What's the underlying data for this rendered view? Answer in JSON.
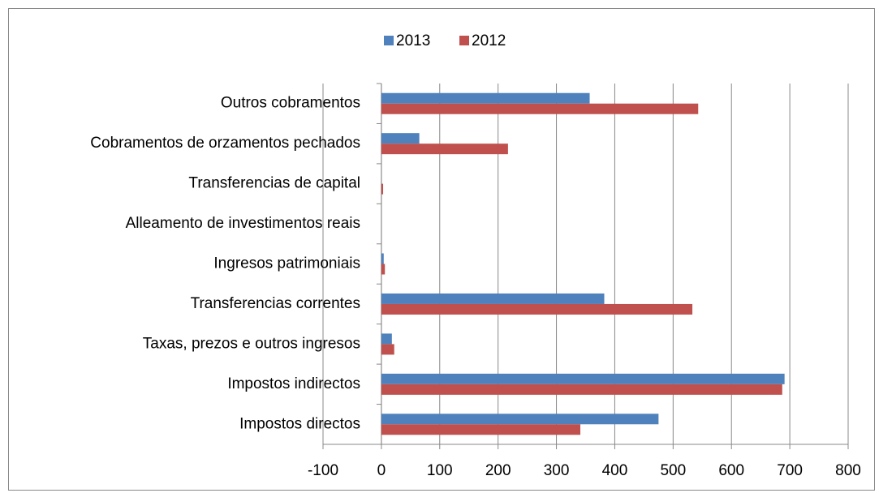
{
  "chart_data": {
    "type": "bar",
    "orientation": "horizontal",
    "categories": [
      "Impostos directos",
      "Impostos indirectos",
      "Taxas, prezos e outros ingresos",
      "Transferencias correntes",
      "Ingresos patrimoniais",
      "Alleamento de investimentos reais",
      "Transferencias de capital",
      "Cobramentos de orzamentos pechados",
      "Outros cobramentos"
    ],
    "series": [
      {
        "name": "2013",
        "color": "#4f81bd",
        "values": [
          475,
          691,
          18,
          382,
          4,
          0,
          0,
          65,
          357
        ]
      },
      {
        "name": "2012",
        "color": "#c0504d",
        "values": [
          341,
          687,
          22,
          533,
          6,
          0,
          3,
          217,
          543
        ]
      }
    ],
    "xlim": [
      -100,
      800
    ],
    "xticks": [
      -100,
      0,
      100,
      200,
      300,
      400,
      500,
      600,
      700,
      800
    ],
    "grid": true,
    "legend": "top"
  }
}
